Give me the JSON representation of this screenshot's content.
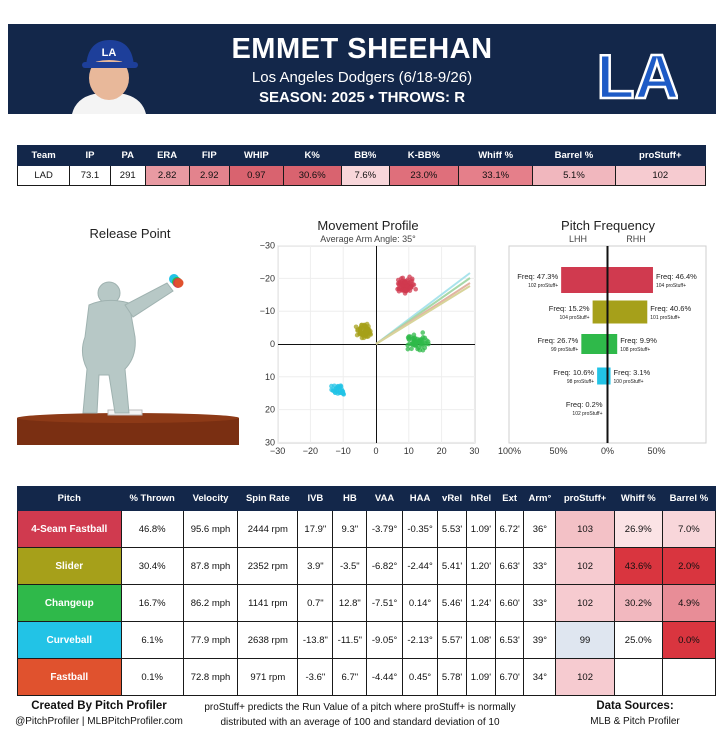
{
  "player": {
    "name": "EMMET SHEEHAN",
    "team_line": "Los Angeles Dodgers (6/18-9/26)",
    "season_line": "SEASON: 2025 • THROWS: R",
    "team_logo_text": "LA"
  },
  "stats": {
    "headers": [
      "Team",
      "IP",
      "PA",
      "ERA",
      "FIP",
      "WHIP",
      "K%",
      "BB%",
      "K-BB%",
      "Whiff %",
      "Barrel %",
      "proStuff+"
    ],
    "values": [
      "LAD",
      "73.1",
      "291",
      "2.82",
      "2.92",
      "0.97",
      "30.6%",
      "7.6%",
      "23.0%",
      "33.1%",
      "5.1%",
      "102"
    ],
    "colors": [
      "#ffffff",
      "#ffffff",
      "#ffffff",
      "#e89aa2",
      "#e3838d",
      "#d9636f",
      "#d9636f",
      "#f8d6da",
      "#df6f7b",
      "#e57f8a",
      "#f1b7be",
      "#f6cbd0"
    ]
  },
  "release": {
    "title": "Release Point"
  },
  "movement": {
    "title": "Movement Profile",
    "subtitle": "Average Arm Angle: 35°",
    "ticks": [
      "−30",
      "−20",
      "−10",
      "0",
      "10",
      "20",
      "30"
    ]
  },
  "frequency": {
    "title": "Pitch Frequency",
    "lhh_label": "LHH",
    "rhh_label": "RHH",
    "x_ticks": [
      "100%",
      "50%",
      "0%",
      "50%"
    ],
    "rows": [
      {
        "left": "Freq: 47.3%",
        "left_sub": "102 proStuff+",
        "right": "Freq: 46.4%",
        "right_sub": "104 proStuff+",
        "color": "#d03a4f",
        "lval": 47.3,
        "rval": 46.4
      },
      {
        "left": "Freq: 15.2%",
        "left_sub": "104 proStuff+",
        "right": "Freq: 40.6%",
        "right_sub": "101 proStuff+",
        "color": "#a6a01a",
        "lval": 15.2,
        "rval": 40.6
      },
      {
        "left": "Freq: 26.7%",
        "left_sub": "99 proStuff+",
        "right": "Freq: 9.9%",
        "right_sub": "108 proStuff+",
        "color": "#2fb94a",
        "lval": 26.7,
        "rval": 9.9
      },
      {
        "left": "Freq: 10.6%",
        "left_sub": "98 proStuff+",
        "right": "Freq: 3.1%",
        "right_sub": "100 proStuff+",
        "color": "#22c3e6",
        "lval": 10.6,
        "rval": 3.1
      },
      {
        "left": "Freq: 0.2%",
        "left_sub": "102 proStuff+",
        "right": "",
        "right_sub": "",
        "color": "#e0522e",
        "lval": 0.2,
        "rval": 0
      }
    ]
  },
  "pitch_table": {
    "headers": [
      "Pitch",
      "% Thrown",
      "Velocity",
      "Spin Rate",
      "IVB",
      "HB",
      "VAA",
      "HAA",
      "vRel",
      "hRel",
      "Ext",
      "Arm°",
      "proStuff+",
      "Whiff %",
      "Barrel %"
    ],
    "rows": [
      {
        "pitch": "4-Seam Fastball",
        "color": "#d03a4f",
        "cells": [
          "46.8%",
          "95.6 mph",
          "2444 rpm",
          "17.9\"",
          "9.3\"",
          "-3.79°",
          "-0.35°",
          "5.53'",
          "1.09'",
          "6.72'",
          "36°",
          "103",
          "26.9%",
          "7.0%"
        ],
        "hl": [
          "#f3c1c6",
          "#fbe3e5",
          "#f8d6da"
        ]
      },
      {
        "pitch": "Slider",
        "color": "#a6a01a",
        "cells": [
          "30.4%",
          "87.8 mph",
          "2352 rpm",
          "3.9\"",
          "-3.5\"",
          "-6.82°",
          "-2.44°",
          "5.41'",
          "1.20'",
          "6.63'",
          "33°",
          "102",
          "43.6%",
          "2.0%"
        ],
        "hl": [
          "#f6cbd0",
          "#d9353f",
          "#d9353f"
        ]
      },
      {
        "pitch": "Changeup",
        "color": "#2fb94a",
        "cells": [
          "16.7%",
          "86.2 mph",
          "1141 rpm",
          "0.7\"",
          "12.8\"",
          "-7.51°",
          "0.14°",
          "5.46'",
          "1.24'",
          "6.60'",
          "33°",
          "102",
          "30.2%",
          "4.9%"
        ],
        "hl": [
          "#f6cbd0",
          "#f2b8bf",
          "#e88d97"
        ]
      },
      {
        "pitch": "Curveball",
        "color": "#22c3e6",
        "cells": [
          "6.1%",
          "77.9 mph",
          "2638 rpm",
          "-13.8\"",
          "-11.5\"",
          "-9.05°",
          "-2.13°",
          "5.57'",
          "1.08'",
          "6.53'",
          "39°",
          "99",
          "25.0%",
          "0.0%"
        ],
        "hl": [
          "#dfe6f0",
          "#ffffff",
          "#d9353f"
        ]
      },
      {
        "pitch": "Fastball",
        "color": "#e0522e",
        "cells": [
          "0.1%",
          "72.8 mph",
          "971 rpm",
          "-3.6\"",
          "6.7\"",
          "-4.44°",
          "0.45°",
          "5.78'",
          "1.09'",
          "6.70'",
          "34°",
          "102",
          "",
          ""
        ],
        "hl": [
          "#f6cbd0",
          "#ffffff",
          "#ffffff"
        ]
      }
    ]
  },
  "footer": {
    "created_by": "Created By Pitch Profiler",
    "handles": "@PitchProfiler | MLBPitchProfiler.com",
    "note_line1": "proStuff+ predicts the Run Value of a pitch where proStuff+ is normally",
    "note_line2": "distributed with an average of 100 and standard deviation of 10",
    "sources_title": "Data Sources:",
    "sources": "MLB & Pitch Profiler"
  }
}
